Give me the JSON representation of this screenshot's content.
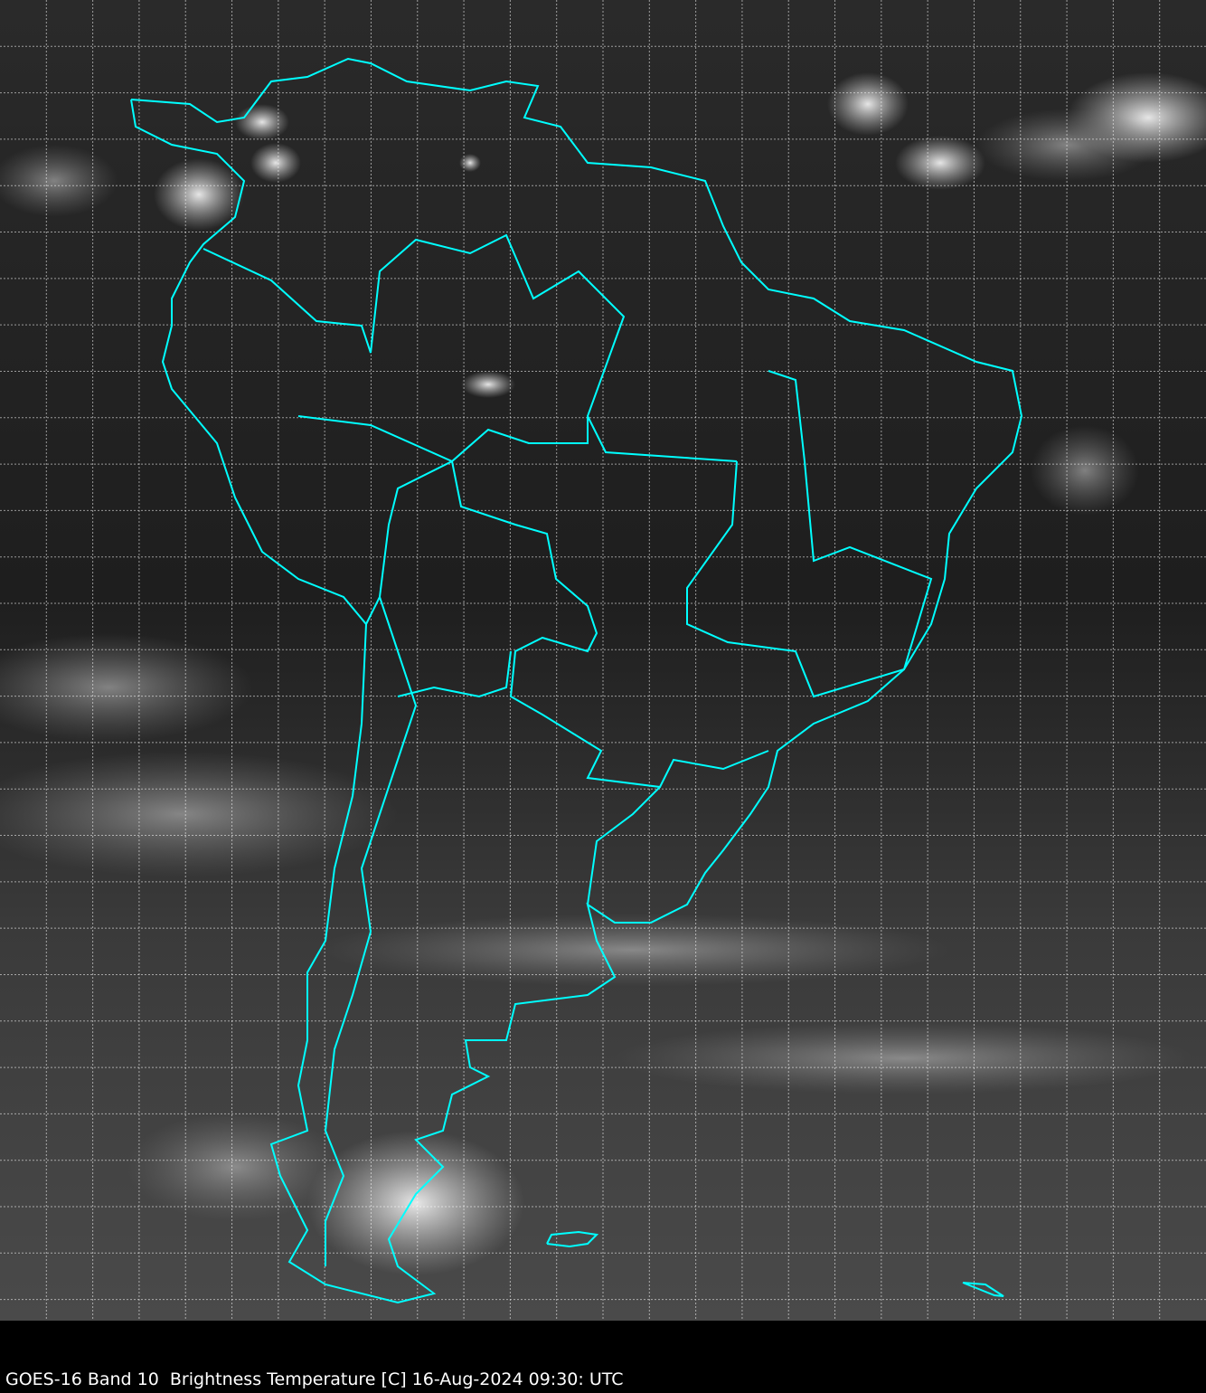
{
  "caption": "GOES-16 Band 10  Brightness Temperature [C] 16-Aug-2024 09:30: UTC",
  "map": {
    "satellite": "GOES-16",
    "band": "Band 10",
    "variable": "Brightness Temperature [C]",
    "datetime": "16-Aug-2024 09:30: UTC",
    "colormap": "grayscale",
    "border_color": "#00ffff",
    "grid_color": "#ffffff",
    "grid_style": "dashed",
    "region": "South America"
  }
}
